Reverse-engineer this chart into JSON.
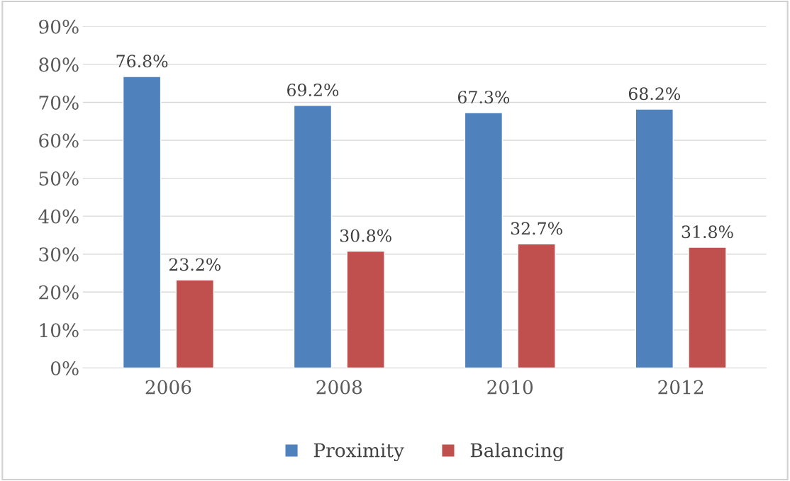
{
  "chart_data": {
    "type": "bar",
    "categories": [
      "2006",
      "2008",
      "2010",
      "2012"
    ],
    "series": [
      {
        "name": "Proximity",
        "color": "#4f81bd",
        "values": [
          76.8,
          69.2,
          67.3,
          68.2
        ],
        "value_labels": [
          "76.8%",
          "69.2%",
          "67.3%",
          "68.2%"
        ]
      },
      {
        "name": "Balancing",
        "color": "#c0504d",
        "values": [
          23.2,
          30.8,
          32.7,
          31.8
        ],
        "value_labels": [
          "23.2%",
          "30.8%",
          "32.7%",
          "31.8%"
        ]
      }
    ],
    "ylim": [
      0,
      90
    ],
    "yticks": [
      {
        "value": 0,
        "label": "0%"
      },
      {
        "value": 10,
        "label": "10%"
      },
      {
        "value": 20,
        "label": "20%"
      },
      {
        "value": 30,
        "label": "30%"
      },
      {
        "value": 40,
        "label": "40%"
      },
      {
        "value": 50,
        "label": "50%"
      },
      {
        "value": 60,
        "label": "60%"
      },
      {
        "value": 70,
        "label": "70%"
      },
      {
        "value": 80,
        "label": "80%"
      },
      {
        "value": 90,
        "label": "90%"
      }
    ],
    "grid": "y",
    "legend": "bottom"
  }
}
